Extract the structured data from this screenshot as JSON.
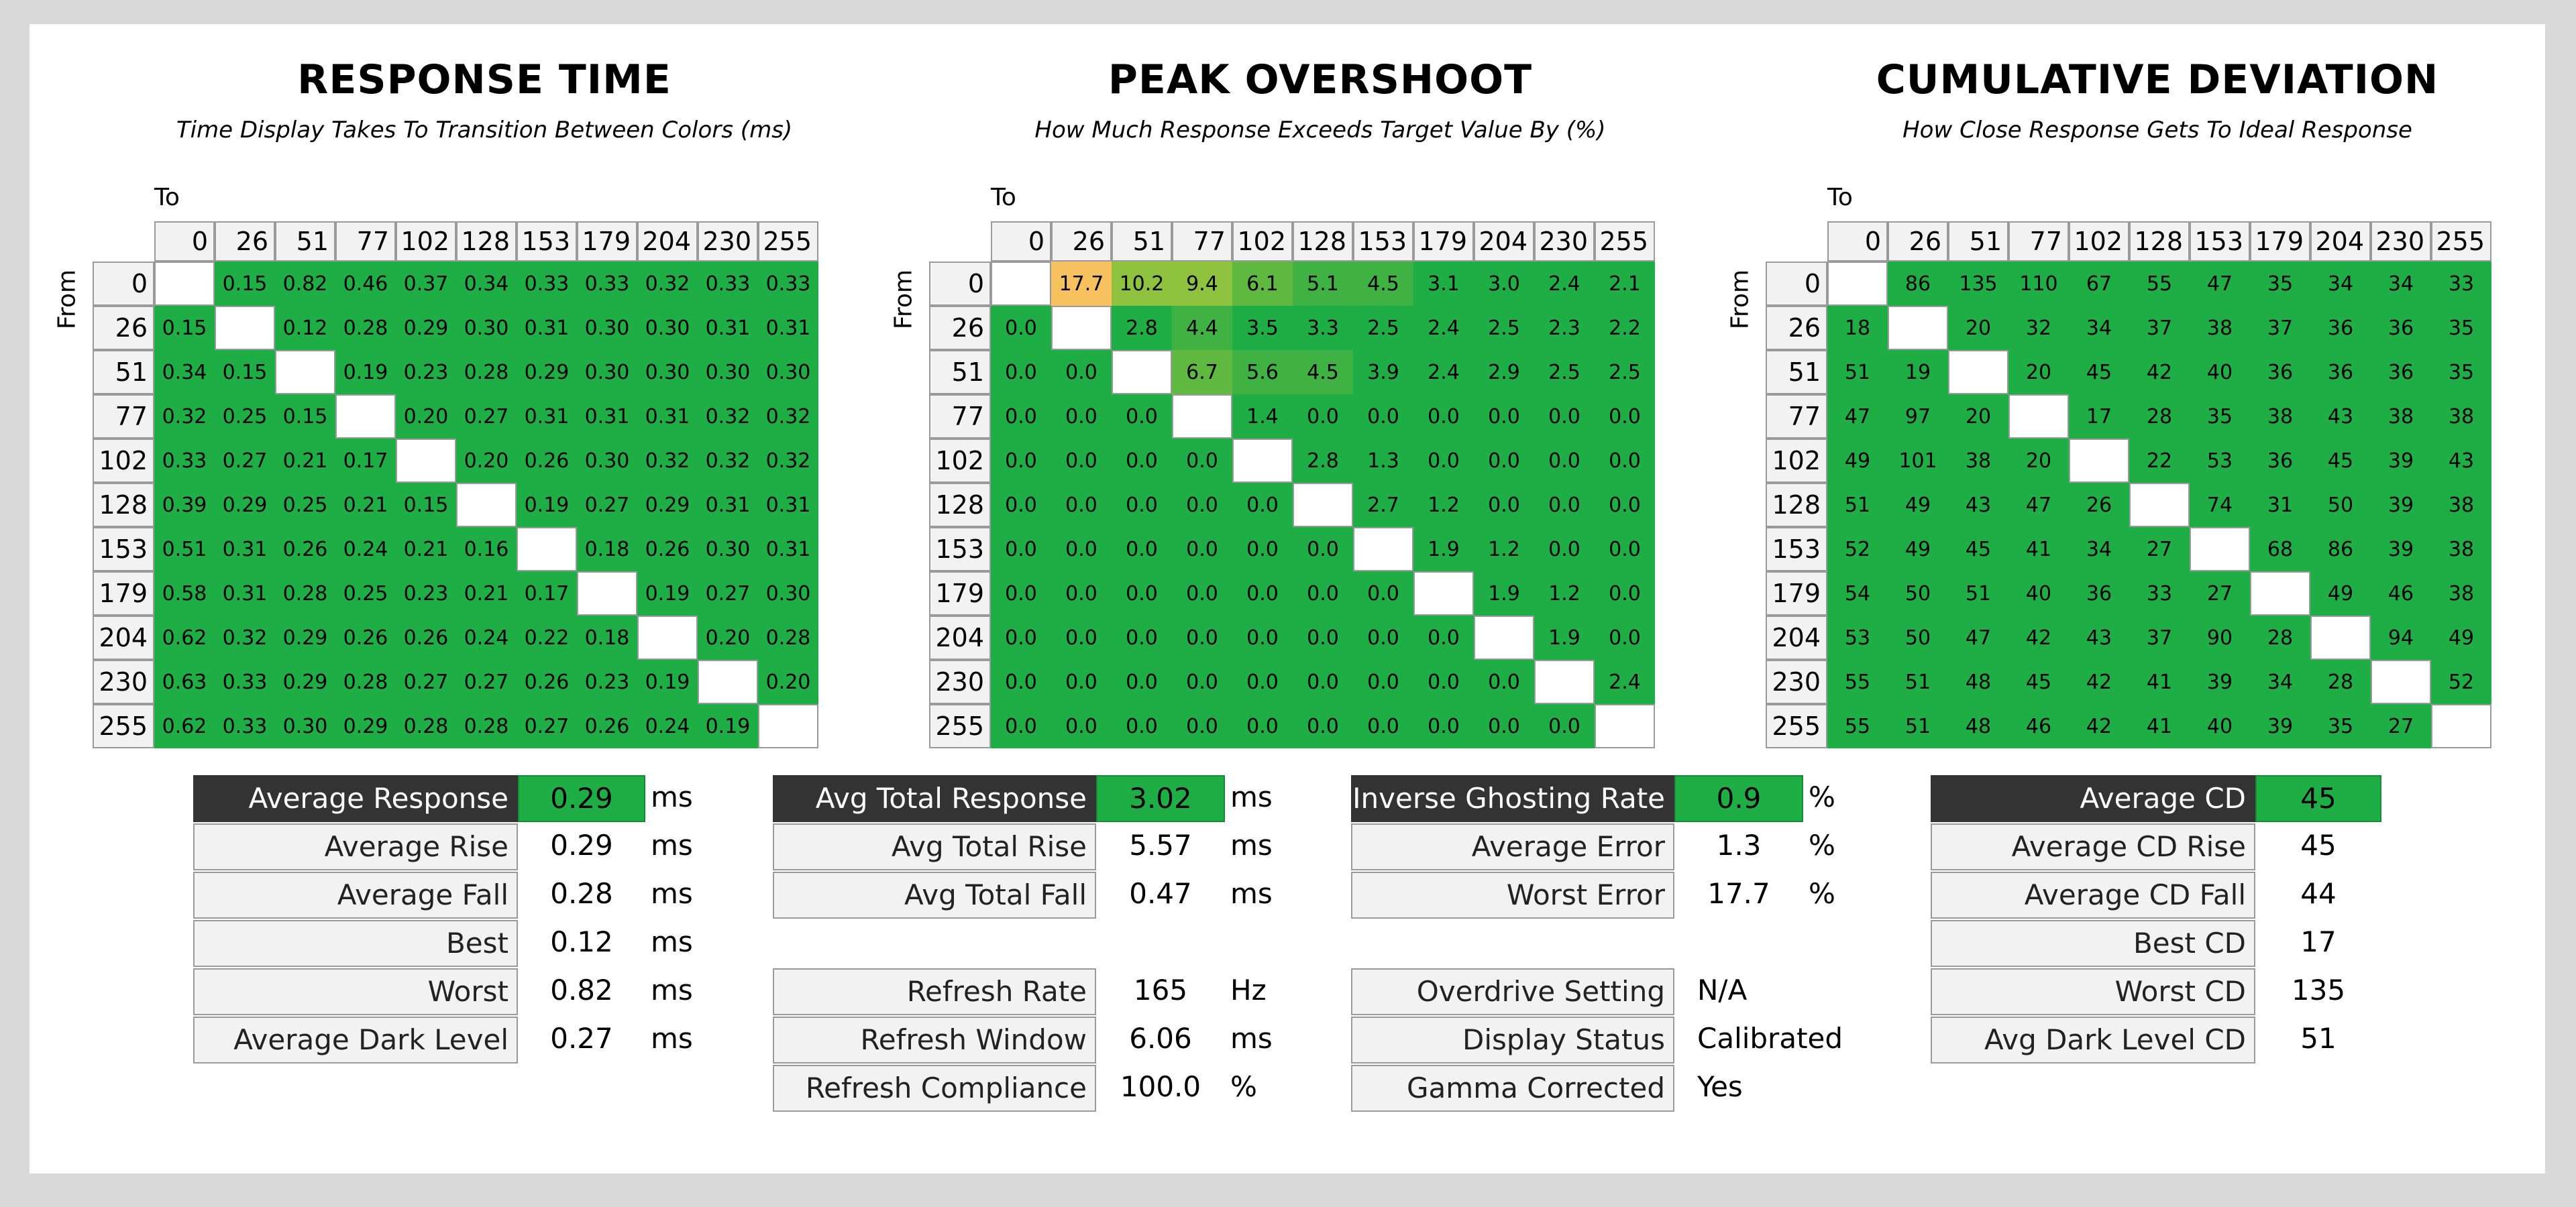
{
  "colors": {
    "good": "#1fae45",
    "orange": "#f7c160",
    "lime": "#8fc23e",
    "mid": "#5fb840",
    "diag": "#ffffff",
    "label_bg": "#f2f2f2",
    "label_dark": "#333333"
  },
  "panels": [
    {
      "title": "RESPONSE TIME",
      "subtitle": "Time Display Takes To Transition Between Colors (ms)"
    },
    {
      "title": "PEAK OVERSHOOT",
      "subtitle": "How Much Response Exceeds Target Value By (%)"
    },
    {
      "title": "CUMULATIVE DEVIATION",
      "subtitle": "How Close Response Gets To Ideal Response"
    }
  ],
  "axis": {
    "to": "To",
    "from": "From"
  },
  "chart_data": [
    {
      "type": "heatmap",
      "title": "RESPONSE TIME",
      "subtitle": "Time Display Takes To Transition Between Colors (ms)",
      "xlabel": "To",
      "ylabel": "From",
      "levels": [
        "0",
        "26",
        "51",
        "77",
        "102",
        "128",
        "153",
        "179",
        "204",
        "230",
        "255"
      ],
      "values": [
        [
          null,
          "0.15",
          "0.82",
          "0.46",
          "0.37",
          "0.34",
          "0.33",
          "0.33",
          "0.32",
          "0.33",
          "0.33"
        ],
        [
          "0.15",
          null,
          "0.12",
          "0.28",
          "0.29",
          "0.30",
          "0.31",
          "0.30",
          "0.30",
          "0.31",
          "0.31"
        ],
        [
          "0.34",
          "0.15",
          null,
          "0.19",
          "0.23",
          "0.28",
          "0.29",
          "0.30",
          "0.30",
          "0.30",
          "0.30"
        ],
        [
          "0.32",
          "0.25",
          "0.15",
          null,
          "0.20",
          "0.27",
          "0.31",
          "0.31",
          "0.31",
          "0.32",
          "0.32"
        ],
        [
          "0.33",
          "0.27",
          "0.21",
          "0.17",
          null,
          "0.20",
          "0.26",
          "0.30",
          "0.32",
          "0.32",
          "0.32"
        ],
        [
          "0.39",
          "0.29",
          "0.25",
          "0.21",
          "0.15",
          null,
          "0.19",
          "0.27",
          "0.29",
          "0.31",
          "0.31"
        ],
        [
          "0.51",
          "0.31",
          "0.26",
          "0.24",
          "0.21",
          "0.16",
          null,
          "0.18",
          "0.26",
          "0.30",
          "0.31"
        ],
        [
          "0.58",
          "0.31",
          "0.28",
          "0.25",
          "0.23",
          "0.21",
          "0.17",
          null,
          "0.19",
          "0.27",
          "0.30"
        ],
        [
          "0.62",
          "0.32",
          "0.29",
          "0.26",
          "0.26",
          "0.24",
          "0.22",
          "0.18",
          null,
          "0.20",
          "0.28"
        ],
        [
          "0.63",
          "0.33",
          "0.29",
          "0.28",
          "0.27",
          "0.27",
          "0.26",
          "0.23",
          "0.19",
          null,
          "0.20"
        ],
        [
          "0.62",
          "0.33",
          "0.30",
          "0.29",
          "0.28",
          "0.28",
          "0.27",
          "0.26",
          "0.24",
          "0.19",
          null
        ]
      ]
    },
    {
      "type": "heatmap",
      "title": "PEAK OVERSHOOT",
      "subtitle": "How Much Response Exceeds Target Value By (%)",
      "xlabel": "To",
      "ylabel": "From",
      "levels": [
        "0",
        "26",
        "51",
        "77",
        "102",
        "128",
        "153",
        "179",
        "204",
        "230",
        "255"
      ],
      "values": [
        [
          null,
          "17.7",
          "10.2",
          "9.4",
          "6.1",
          "5.1",
          "4.5",
          "3.1",
          "3.0",
          "2.4",
          "2.1"
        ],
        [
          "0.0",
          null,
          "2.8",
          "4.4",
          "3.5",
          "3.3",
          "2.5",
          "2.4",
          "2.5",
          "2.3",
          "2.2"
        ],
        [
          "0.0",
          "0.0",
          null,
          "6.7",
          "5.6",
          "4.5",
          "3.9",
          "2.4",
          "2.9",
          "2.5",
          "2.5"
        ],
        [
          "0.0",
          "0.0",
          "0.0",
          null,
          "1.4",
          "0.0",
          "0.0",
          "0.0",
          "0.0",
          "0.0",
          "0.0"
        ],
        [
          "0.0",
          "0.0",
          "0.0",
          "0.0",
          null,
          "2.8",
          "1.3",
          "0.0",
          "0.0",
          "0.0",
          "0.0"
        ],
        [
          "0.0",
          "0.0",
          "0.0",
          "0.0",
          "0.0",
          null,
          "2.7",
          "1.2",
          "0.0",
          "0.0",
          "0.0"
        ],
        [
          "0.0",
          "0.0",
          "0.0",
          "0.0",
          "0.0",
          "0.0",
          null,
          "1.9",
          "1.2",
          "0.0",
          "0.0"
        ],
        [
          "0.0",
          "0.0",
          "0.0",
          "0.0",
          "0.0",
          "0.0",
          "0.0",
          null,
          "1.9",
          "1.2",
          "0.0"
        ],
        [
          "0.0",
          "0.0",
          "0.0",
          "0.0",
          "0.0",
          "0.0",
          "0.0",
          "0.0",
          null,
          "1.9",
          "0.0"
        ],
        [
          "0.0",
          "0.0",
          "0.0",
          "0.0",
          "0.0",
          "0.0",
          "0.0",
          "0.0",
          "0.0",
          null,
          "2.4"
        ],
        [
          "0.0",
          "0.0",
          "0.0",
          "0.0",
          "0.0",
          "0.0",
          "0.0",
          "0.0",
          "0.0",
          "0.0",
          null
        ]
      ]
    },
    {
      "type": "heatmap",
      "title": "CUMULATIVE DEVIATION",
      "subtitle": "How Close Response Gets To Ideal Response",
      "xlabel": "To",
      "ylabel": "From",
      "levels": [
        "0",
        "26",
        "51",
        "77",
        "102",
        "128",
        "153",
        "179",
        "204",
        "230",
        "255"
      ],
      "values": [
        [
          null,
          "86",
          "135",
          "110",
          "67",
          "55",
          "47",
          "35",
          "34",
          "34",
          "33"
        ],
        [
          "18",
          null,
          "20",
          "32",
          "34",
          "37",
          "38",
          "37",
          "36",
          "36",
          "35"
        ],
        [
          "51",
          "19",
          null,
          "20",
          "45",
          "42",
          "40",
          "36",
          "36",
          "36",
          "35"
        ],
        [
          "47",
          "97",
          "20",
          null,
          "17",
          "28",
          "35",
          "38",
          "43",
          "38",
          "38"
        ],
        [
          "49",
          "101",
          "38",
          "20",
          null,
          "22",
          "53",
          "36",
          "45",
          "39",
          "43"
        ],
        [
          "51",
          "49",
          "43",
          "47",
          "26",
          null,
          "74",
          "31",
          "50",
          "39",
          "38"
        ],
        [
          "52",
          "49",
          "45",
          "41",
          "34",
          "27",
          null,
          "68",
          "86",
          "39",
          "38"
        ],
        [
          "54",
          "50",
          "51",
          "40",
          "36",
          "33",
          "27",
          null,
          "49",
          "46",
          "38"
        ],
        [
          "53",
          "50",
          "47",
          "42",
          "43",
          "37",
          "90",
          "28",
          null,
          "94",
          "49"
        ],
        [
          "55",
          "51",
          "48",
          "45",
          "42",
          "41",
          "39",
          "34",
          "28",
          null,
          "52"
        ],
        [
          "55",
          "51",
          "48",
          "46",
          "42",
          "41",
          "40",
          "39",
          "35",
          "27",
          null
        ]
      ]
    }
  ],
  "stats": [
    {
      "rows": [
        {
          "label": "Average Response",
          "value": "0.29",
          "unit": "ms",
          "header": true
        },
        {
          "label": "Average Rise",
          "value": "0.29",
          "unit": "ms"
        },
        {
          "label": "Average Fall",
          "value": "0.28",
          "unit": "ms"
        },
        {
          "label": "Best",
          "value": "0.12",
          "unit": "ms"
        },
        {
          "label": "Worst",
          "value": "0.82",
          "unit": "ms"
        },
        {
          "label": "Average Dark Level",
          "value": "0.27",
          "unit": "ms"
        }
      ]
    },
    {
      "rows": [
        {
          "label": "Avg Total Response",
          "value": "3.02",
          "unit": "ms",
          "header": true
        },
        {
          "label": "Avg Total Rise",
          "value": "5.57",
          "unit": "ms"
        },
        {
          "label": "Avg Total Fall",
          "value": "0.47",
          "unit": "ms"
        },
        {
          "gap": true
        },
        {
          "label": "Refresh Rate",
          "value": "165",
          "unit": "Hz"
        },
        {
          "label": "Refresh Window",
          "value": "6.06",
          "unit": "ms"
        },
        {
          "label": "Refresh Compliance",
          "value": "100.0",
          "unit": "%"
        }
      ]
    },
    {
      "rows": [
        {
          "label": "Inverse Ghosting Rate",
          "value": "0.9",
          "unit": "%",
          "header": true
        },
        {
          "label": "Average Error",
          "value": "1.3",
          "unit": "%"
        },
        {
          "label": "Worst Error",
          "value": "17.7",
          "unit": "%"
        },
        {
          "gap": true
        },
        {
          "label": "Overdrive Setting",
          "value": "N/A",
          "unit": "",
          "left": true
        },
        {
          "label": "Display Status",
          "value": "Calibrated",
          "unit": "",
          "left": true
        },
        {
          "label": "Gamma Corrected",
          "value": "Yes",
          "unit": "",
          "left": true
        }
      ]
    },
    {
      "rows": [
        {
          "label": "Average CD",
          "value": "45",
          "unit": "",
          "header": true
        },
        {
          "label": "Average CD Rise",
          "value": "45",
          "unit": ""
        },
        {
          "label": "Average CD Fall",
          "value": "44",
          "unit": ""
        },
        {
          "label": "Best CD",
          "value": "17",
          "unit": ""
        },
        {
          "label": "Worst CD",
          "value": "135",
          "unit": ""
        },
        {
          "label": "Avg Dark Level CD",
          "value": "51",
          "unit": ""
        }
      ]
    }
  ]
}
